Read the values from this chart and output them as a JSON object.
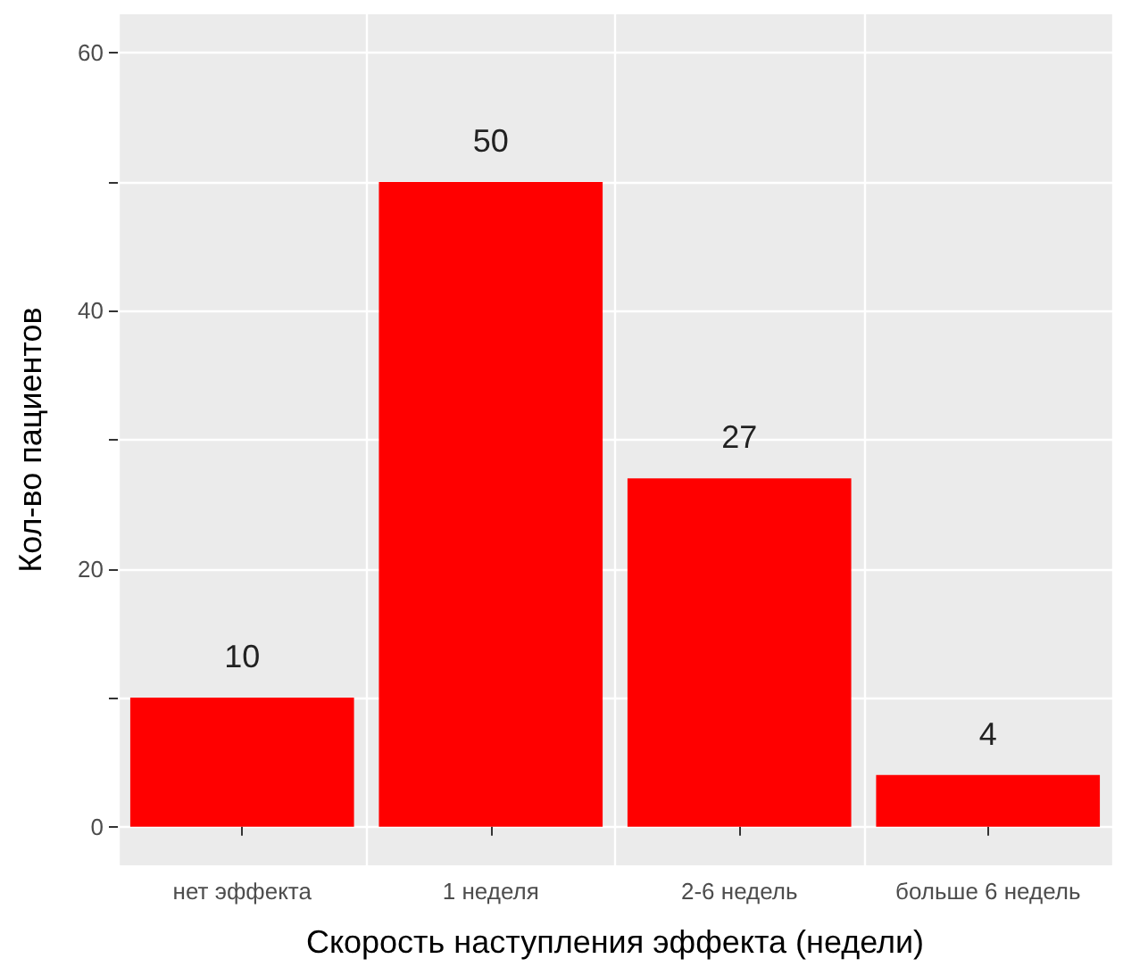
{
  "chart_data": {
    "type": "bar",
    "xlabel": "Скорость наступления эффекта (недели)",
    "ylabel": "Кол-во пациентов",
    "categories": [
      "нет эффекта",
      "1 неделя",
      "2-6 недель",
      "больше 6 недель"
    ],
    "values": [
      10,
      50,
      27,
      4
    ],
    "color": "#ff0000",
    "data_labels": true,
    "ylim": [
      -3,
      63
    ],
    "yticks": [
      0,
      {
        "value": 10,
        "label": null
      },
      20,
      {
        "value": 30,
        "label": null
      },
      40,
      {
        "value": 50,
        "label": null
      },
      60
    ],
    "grid": true
  }
}
